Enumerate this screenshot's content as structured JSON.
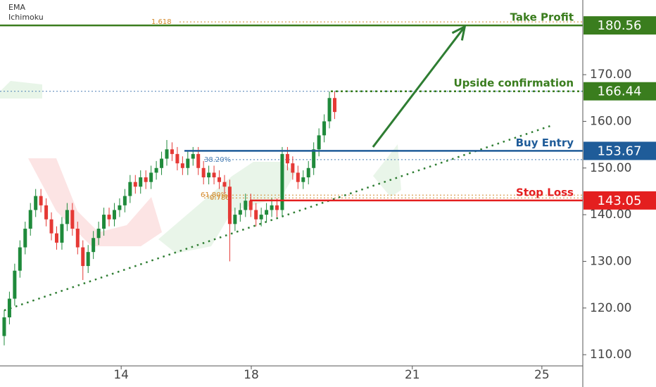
{
  "chart_data": {
    "type": "candlestick",
    "legend": [
      "EMA",
      "Ichimoku"
    ],
    "up_color": "#1f8a3b",
    "down_color": "#e53935",
    "x": [
      0,
      1,
      2,
      3,
      4,
      5,
      6,
      7,
      8,
      9,
      10,
      11,
      12,
      13,
      14,
      15,
      16,
      17,
      18,
      19,
      20,
      21,
      22,
      23,
      24,
      25,
      26,
      27,
      28,
      29,
      30,
      31,
      32,
      33,
      34,
      35,
      36,
      37,
      38,
      39,
      40,
      41,
      42,
      43,
      44,
      45,
      46,
      47,
      48,
      49,
      50,
      51,
      52,
      53,
      54,
      55,
      56,
      57,
      58,
      59,
      60,
      61,
      62,
      63
    ],
    "open": [
      114,
      118,
      122,
      128,
      133,
      137,
      141,
      144,
      142,
      139,
      136,
      134,
      138,
      141,
      137,
      133,
      129,
      132,
      135,
      137,
      140,
      139,
      141,
      142,
      144,
      147,
      146,
      148,
      147,
      149,
      150,
      152,
      154,
      153,
      151,
      150,
      152,
      153,
      150,
      148,
      149,
      148,
      147,
      146,
      138,
      140,
      141,
      143,
      141,
      139,
      140,
      141,
      142,
      141,
      153,
      151,
      149,
      147,
      148,
      150,
      154,
      157,
      160,
      165
    ],
    "high": [
      119.5,
      123.5,
      129.5,
      134.5,
      138.5,
      142.5,
      145.5,
      145.5,
      143.5,
      140.5,
      137.5,
      139.5,
      142.5,
      142.5,
      138.5,
      134.5,
      133.5,
      136.5,
      138.5,
      141.5,
      141.5,
      142.5,
      143.5,
      145.5,
      148.5,
      148.5,
      149.5,
      149.5,
      150.5,
      151.5,
      153.5,
      156,
      155.5,
      154.5,
      152.5,
      153.5,
      154.5,
      154.5,
      151.5,
      150.5,
      150.5,
      149.5,
      148.5,
      147.5,
      141.5,
      142.5,
      144.5,
      144.5,
      142.5,
      141.5,
      142.5,
      143.5,
      143.5,
      154.5,
      154.5,
      152.5,
      150.5,
      149.5,
      151.5,
      155.5,
      158.5,
      161.5,
      166.4,
      166.5
    ],
    "low": [
      112,
      116.5,
      120.5,
      126.5,
      131.5,
      135.5,
      139.5,
      140.5,
      137.5,
      134.5,
      132.5,
      132.5,
      136.5,
      135.5,
      131.5,
      126,
      127.5,
      130.5,
      133.5,
      135.5,
      137.5,
      137.5,
      139.5,
      140.5,
      142.5,
      144.5,
      144.5,
      145.5,
      145.5,
      147.5,
      148.5,
      150.5,
      151.5,
      149.5,
      148.5,
      148.5,
      150.5,
      148.5,
      146.5,
      146.5,
      146.5,
      145.5,
      144.5,
      130,
      136.5,
      138.5,
      139.5,
      139.5,
      137.5,
      137.5,
      138.5,
      139.5,
      139.5,
      139.5,
      149.5,
      147.5,
      145.5,
      145.5,
      146.5,
      148.5,
      152.5,
      155.5,
      158.5,
      160.5
    ],
    "close": [
      118,
      122,
      128,
      133,
      137,
      141,
      144,
      142,
      139,
      136,
      134,
      138,
      141,
      137,
      133,
      129,
      132,
      135,
      137,
      140,
      139,
      141,
      142,
      144,
      147,
      146,
      148,
      147,
      149,
      150,
      152,
      154,
      153,
      151,
      150,
      152,
      153,
      150,
      148,
      149,
      148,
      147,
      146,
      138,
      140,
      141,
      143,
      141,
      139,
      140,
      141,
      142,
      141,
      153,
      151,
      149,
      147,
      148,
      150,
      154,
      157,
      160,
      165,
      162
    ],
    "levels": [
      {
        "label": "Take Profit",
        "value": 180.56,
        "color": "#3a7d1e"
      },
      {
        "label": "Upside confirmation",
        "value": 166.44,
        "color": "#3a7d1e"
      },
      {
        "label": "Buy Entry",
        "value": 153.67,
        "color": "#1f5c99"
      },
      {
        "label": "Stop Loss",
        "value": 143.05,
        "color": "#e41f1f"
      }
    ],
    "fib": [
      {
        "label": "1.618",
        "value": 181.3
      },
      {
        "label": "38.20%",
        "value": 151.8
      },
      {
        "label": "61.80%",
        "value": 144.2
      },
      {
        "label": "0.786",
        "value": 143.6
      }
    ],
    "trendline": {
      "x": [
        0,
        104.6
      ],
      "y": [
        119.5,
        159.2
      ]
    },
    "arrow": {
      "x": [
        70.3,
        87.8
      ],
      "y": [
        154.5,
        180.3
      ]
    },
    "xlim": [
      -0.8,
      110.3
    ],
    "ylim": [
      107.6,
      186
    ],
    "xticks": [
      {
        "value": 22.3,
        "label": "14"
      },
      {
        "value": 47.1,
        "label": "18"
      },
      {
        "value": 77.8,
        "label": "21"
      },
      {
        "value": 102.5,
        "label": "25"
      }
    ],
    "yticks": [
      {
        "value": 110,
        "label": "110.00"
      },
      {
        "value": 120,
        "label": "120.00"
      },
      {
        "value": 130,
        "label": "130.00"
      },
      {
        "value": 140,
        "label": "140.00"
      },
      {
        "value": 150,
        "label": "150.00"
      },
      {
        "value": 160,
        "label": "160.00"
      },
      {
        "value": 170,
        "label": "170.00"
      }
    ]
  }
}
